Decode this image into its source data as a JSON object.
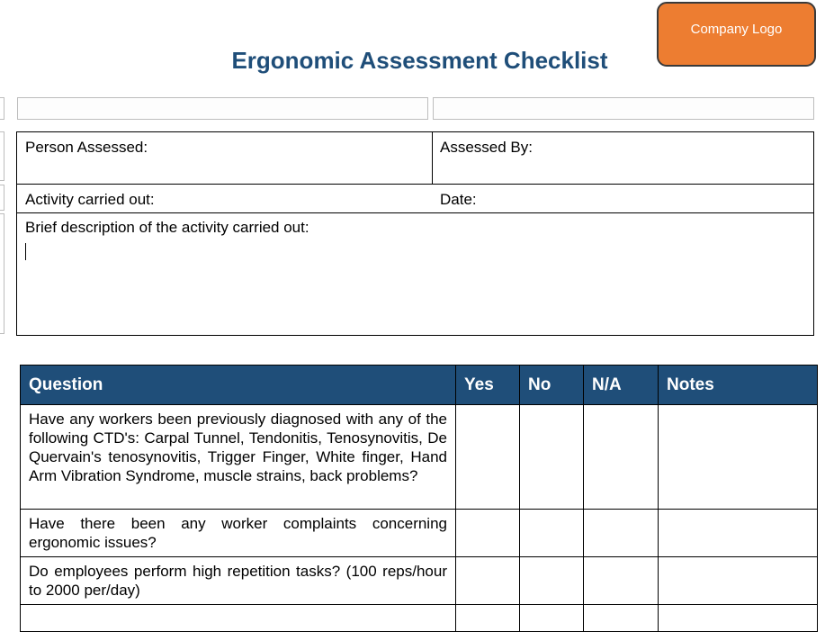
{
  "title": "Ergonomic Assessment Checklist",
  "logo_text": "Company Logo",
  "colors": {
    "accent": "#1f4e79",
    "logo": "#ed7d31"
  },
  "form": {
    "person_assessed": "Person Assessed:",
    "assessed_by": "Assessed By:",
    "activity": "Activity carried out:",
    "date": "Date:",
    "description": "Brief description of the activity carried out:",
    "description_value": ""
  },
  "checklist": {
    "headers": [
      "Question",
      "Yes",
      "No",
      "N/A",
      "Notes"
    ],
    "rows": [
      "Have any workers been previously diagnosed with any of the following CTD's: Carpal Tunnel, Tendonitis, Tenosynovitis, De Quervain's tenosynovitis, Trigger Finger, White finger, Hand Arm Vibration Syndrome, muscle strains, back problems?",
      "Have there been any worker complaints concerning ergonomic issues?",
      "Do employees perform high repetition tasks?  (100 reps/hour to 2000 per/day)"
    ]
  }
}
